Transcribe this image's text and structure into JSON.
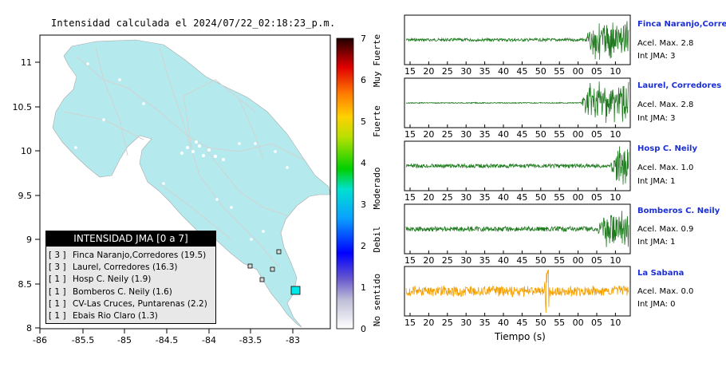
{
  "title": "Intensidad calculada el 2024/07/22_02:18:23_p.m.",
  "map": {
    "xticks": [
      "-86",
      "-85.5",
      "-85",
      "-84.5",
      "-84",
      "-83.5",
      "-83"
    ],
    "yticks": [
      "11",
      "10.5",
      "10",
      "9.5",
      "9",
      "8.5",
      "8"
    ],
    "land_color": "#b4eaed"
  },
  "colorbar": {
    "ticks": [
      "0",
      "1",
      "2",
      "3",
      "4",
      "5",
      "6",
      "7"
    ],
    "categories": [
      "No sentido",
      "Debil",
      "Moderado",
      "Fuerte",
      "Muy Fuerte"
    ]
  },
  "legend": {
    "title": "INTENSIDAD JMA [0 a 7]",
    "rows": [
      {
        "code": "[ 3 ]",
        "text": "Finca Naranjo,Corredores (19.5)"
      },
      {
        "code": "[ 3 ]",
        "text": "Laurel, Corredores (16.3)"
      },
      {
        "code": "[ 1 ]",
        "text": "Hosp C. Neily (1.9)"
      },
      {
        "code": "[ 1 ]",
        "text": "Bomberos C. Neily (1.6)"
      },
      {
        "code": "[ 1 ]",
        "text": "CV-Las Cruces, Puntarenas (2.2)"
      },
      {
        "code": "[ 1 ]",
        "text": "Ebais Rio Claro (1.3)"
      }
    ]
  },
  "traces": {
    "xticks": [
      "15",
      "20",
      "25",
      "30",
      "35",
      "40",
      "45",
      "50",
      "55",
      "00",
      "05",
      "10"
    ],
    "xlabel": "Tiempo (s)",
    "stations": [
      {
        "name": "Finca Naranjo,Corredores",
        "acel": "Acel. Max. 2.8",
        "int": "Int JMA: 3",
        "color": "#1f7a1f"
      },
      {
        "name": "Laurel, Corredores",
        "acel": "Acel. Max. 2.8",
        "int": "Int JMA: 3",
        "color": "#1f7a1f"
      },
      {
        "name": "Hosp C. Neily",
        "acel": "Acel. Max. 1.0",
        "int": "Int JMA: 1",
        "color": "#1f7a1f"
      },
      {
        "name": "Bomberos C. Neily",
        "acel": "Acel. Max. 0.9",
        "int": "Int JMA: 1",
        "color": "#1f7a1f"
      },
      {
        "name": "La Sabana",
        "acel": "Acel. Max. 0.0",
        "int": "Int JMA: 0",
        "color": "#f5a000"
      }
    ]
  }
}
